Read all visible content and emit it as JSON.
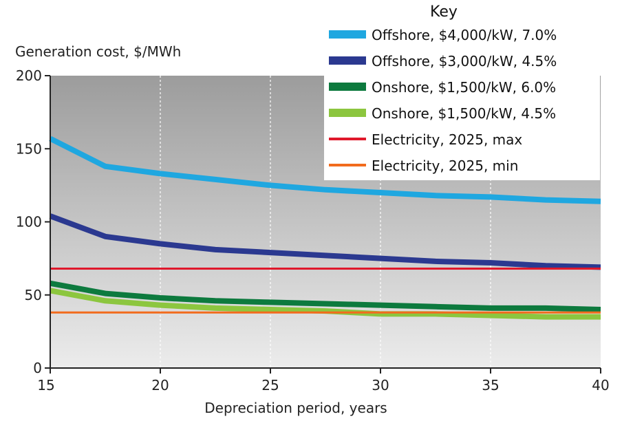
{
  "chart_data": {
    "type": "line",
    "xlabel": "Depreciation period, years",
    "ylabel": "Generation cost, $/MWh",
    "xlim": [
      15,
      40
    ],
    "ylim": [
      0,
      200
    ],
    "x_ticks": [
      "15",
      "20",
      "25",
      "30",
      "35",
      "40"
    ],
    "y_ticks": [
      "0",
      "50",
      "100",
      "150",
      "200"
    ],
    "grid": "vertical dashed white",
    "legend_title": "Key",
    "legend_position": "top-right",
    "x": [
      15,
      17.5,
      20,
      22.5,
      25,
      27.5,
      30,
      32.5,
      35,
      37.5,
      40
    ],
    "series": [
      {
        "name": "Offshore, $4,000/kW, 7.0%",
        "color": "#1fa7e0",
        "values": [
          157,
          138,
          133,
          129,
          125,
          122,
          120,
          118,
          117,
          115,
          114
        ]
      },
      {
        "name": "Offshore, $3,000/kW, 4.5%",
        "color": "#2b3990",
        "values": [
          104,
          90,
          85,
          81,
          79,
          77,
          75,
          73,
          72,
          70,
          69
        ]
      },
      {
        "name": "Onshore, $1,500/kW, 6.0%",
        "color": "#0d7a3e",
        "values": [
          58,
          51,
          48,
          46,
          45,
          44,
          43,
          42,
          41,
          41,
          40
        ]
      },
      {
        "name": "Onshore, $1,500/kW, 4.5%",
        "color": "#8cc63f",
        "values": [
          53,
          46,
          43,
          41,
          40,
          39,
          37,
          37,
          36,
          35,
          35
        ]
      },
      {
        "name": "Electricity, 2025, max",
        "color": "#e0182b",
        "values": [
          68,
          68,
          68,
          68,
          68,
          68,
          68,
          68,
          68,
          68,
          68
        ]
      },
      {
        "name": "Electricity, 2025, min",
        "color": "#f26b1d",
        "values": [
          38,
          38,
          38,
          38,
          38,
          38,
          38,
          38,
          38,
          38,
          38
        ]
      }
    ]
  }
}
